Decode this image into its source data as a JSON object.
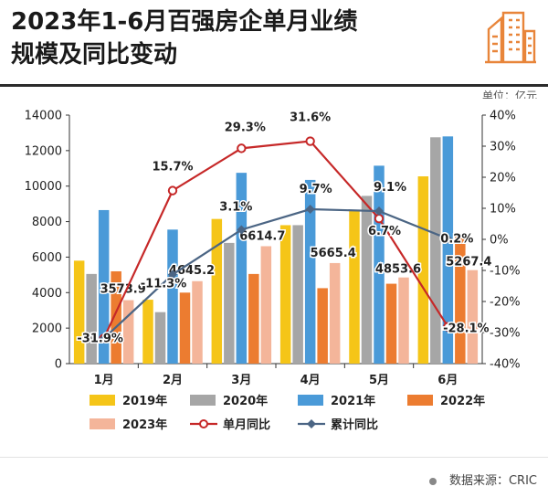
{
  "title_line1": "2023年1-6月百强房企单月业绩",
  "title_line2": "规模及同比变动",
  "unit": "单位：亿元",
  "source": "数据来源：CRIC",
  "colors": {
    "2019": "#f5c518",
    "2020": "#a6a6a6",
    "2021": "#4a9ad8",
    "2022": "#ec7c30",
    "2023": "#f4b59a",
    "monthly": "#c62828",
    "cumulative": "#4b6584",
    "logo": "#e8853a"
  },
  "chart_data": {
    "type": "bar",
    "categories": [
      "1月",
      "2月",
      "3月",
      "4月",
      "5月",
      "6月"
    ],
    "series": [
      {
        "name": "2019年",
        "values": [
          5800,
          3600,
          8150,
          7800,
          8600,
          10550
        ]
      },
      {
        "name": "2020年",
        "values": [
          5050,
          2900,
          6800,
          7800,
          9450,
          12750
        ]
      },
      {
        "name": "2021年",
        "values": [
          8650,
          7550,
          10750,
          10350,
          11150,
          12800
        ]
      },
      {
        "name": "2022年",
        "values": [
          5200,
          4000,
          5050,
          4250,
          4500,
          7250
        ]
      },
      {
        "name": "2023年",
        "values": [
          3573.9,
          4645.2,
          6614.7,
          5665.4,
          4853.6,
          5267.4
        ]
      }
    ],
    "bar_labels": [
      "3573.9",
      "4645.2",
      "6614.7",
      "5665.4",
      "4853.6",
      "5267.4"
    ],
    "lines": [
      {
        "name": "单月同比",
        "values": [
          -31.9,
          15.7,
          29.3,
          31.6,
          6.7,
          -28.1
        ],
        "labels": [
          "-31.9%",
          "15.7%",
          "29.3%",
          "31.6%",
          "6.7%",
          "-28.1%"
        ]
      },
      {
        "name": "累计同比",
        "values": [
          -31.9,
          -11.3,
          3.1,
          9.7,
          9.1,
          0.2
        ],
        "labels": [
          "",
          "-11.3%",
          "3.1%",
          "9.7%",
          "9.1%",
          "0.2%"
        ]
      }
    ],
    "ylim_left": [
      0,
      14000
    ],
    "yticks_left": [
      "0",
      "2000",
      "4000",
      "6000",
      "8000",
      "10000",
      "12000",
      "14000"
    ],
    "ylim_right": [
      -40,
      40
    ],
    "yticks_right": [
      "-40%",
      "-30%",
      "-20%",
      "-10%",
      "0%",
      "10%",
      "20%",
      "30%",
      "40%"
    ],
    "legend_position": "bottom",
    "grid": false
  }
}
